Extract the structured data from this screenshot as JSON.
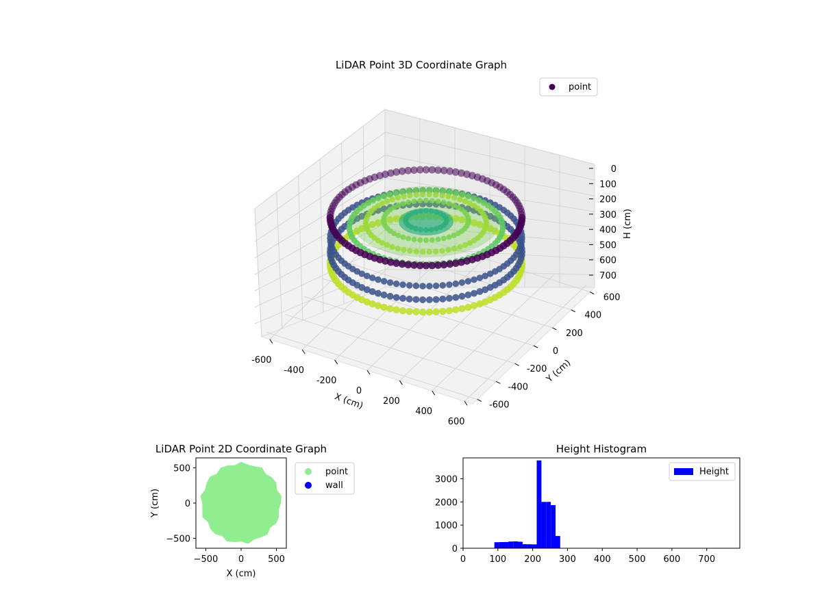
{
  "chart_data": [
    {
      "type": "scatter",
      "projection": "3d",
      "title": "LiDAR Point 3D Coordinate Graph",
      "xlabel": "X (cm)",
      "ylabel": "Y (cm)",
      "zlabel": "H (cm)",
      "xlim": [
        -650,
        650
      ],
      "ylim": [
        -650,
        650
      ],
      "zlim": [
        780,
        0
      ],
      "z_inverted": true,
      "xticks": [
        -600,
        -400,
        -200,
        0,
        200,
        400,
        600
      ],
      "yticks": [
        -600,
        -400,
        -200,
        0,
        200,
        400,
        600
      ],
      "zticks": [
        0,
        100,
        200,
        300,
        400,
        500,
        600,
        700
      ],
      "grid": true,
      "colormap": "viridis",
      "legend": {
        "position": "top-right",
        "entries": [
          {
            "label": "point",
            "color": "#440154"
          }
        ]
      },
      "series": [
        {
          "name": "point",
          "description_rings": [
            {
              "radius": 570,
              "h_range": [
                100,
                130
              ],
              "color": "#440154"
            },
            {
              "radius": 570,
              "h_range": [
                150,
                260
              ],
              "color": "#3b528b"
            },
            {
              "radius": 570,
              "h_range": [
                260,
                290
              ],
              "color": "#bddf26"
            },
            {
              "radius": 460,
              "h_range": [
                220,
                260
              ],
              "color": "#5ec962"
            },
            {
              "radius": 360,
              "h_range": [
                220,
                250
              ],
              "color": "#addc30"
            },
            {
              "radius": 250,
              "h_range": [
                210,
                240
              ],
              "color": "#7ad151"
            },
            {
              "radius": 120,
              "h_range": [
                220,
                240
              ],
              "color": "#22a884"
            }
          ]
        }
      ]
    },
    {
      "type": "scatter",
      "title": "LiDAR Point 2D Coordinate Graph",
      "xlabel": "X (cm)",
      "ylabel": "Y (cm)",
      "xlim": [
        -640,
        640
      ],
      "ylim": [
        -640,
        640
      ],
      "xticks": [
        -500,
        0,
        500
      ],
      "yticks": [
        -500,
        0,
        500
      ],
      "legend": {
        "position": "outside-right",
        "entries": [
          {
            "label": "point",
            "color": "#90ee90"
          },
          {
            "label": "wall",
            "color": "#0000ff"
          }
        ]
      },
      "series": [
        {
          "name": "point",
          "shape": "filled-disc",
          "radius": 580,
          "color": "#90ee90"
        },
        {
          "name": "wall",
          "points": [],
          "color": "#0000ff"
        }
      ]
    },
    {
      "type": "bar",
      "subtype": "histogram",
      "title": "Height Histogram",
      "xlabel": "",
      "ylabel": "",
      "xlim": [
        0,
        795
      ],
      "ylim": [
        0,
        3900
      ],
      "xticks": [
        0,
        100,
        200,
        300,
        400,
        500,
        600,
        700
      ],
      "yticks": [
        0,
        1000,
        2000,
        3000
      ],
      "bin_width": 13.5,
      "color": "#0000ff",
      "legend": {
        "position": "top-right",
        "entries": [
          {
            "label": "Height",
            "color": "#0000ff"
          }
        ]
      },
      "series": [
        {
          "name": "Height",
          "bins": [
            {
              "x0": 90,
              "x1": 103.5,
              "count": 260
            },
            {
              "x0": 103.5,
              "x1": 117,
              "count": 265
            },
            {
              "x0": 117,
              "x1": 130.5,
              "count": 270
            },
            {
              "x0": 130.5,
              "x1": 144,
              "count": 290
            },
            {
              "x0": 144,
              "x1": 157.5,
              "count": 295
            },
            {
              "x0": 157.5,
              "x1": 171,
              "count": 280
            },
            {
              "x0": 171,
              "x1": 184.5,
              "count": 175
            },
            {
              "x0": 184.5,
              "x1": 198,
              "count": 170
            },
            {
              "x0": 198,
              "x1": 211.5,
              "count": 165
            },
            {
              "x0": 211.5,
              "x1": 225,
              "count": 3790
            },
            {
              "x0": 225,
              "x1": 238.5,
              "count": 2000
            },
            {
              "x0": 238.5,
              "x1": 252,
              "count": 2000
            },
            {
              "x0": 252,
              "x1": 265.5,
              "count": 1860
            },
            {
              "x0": 265.5,
              "x1": 279,
              "count": 530
            },
            {
              "x0": 279,
              "x1": 292.5,
              "count": 0
            }
          ]
        }
      ]
    }
  ]
}
